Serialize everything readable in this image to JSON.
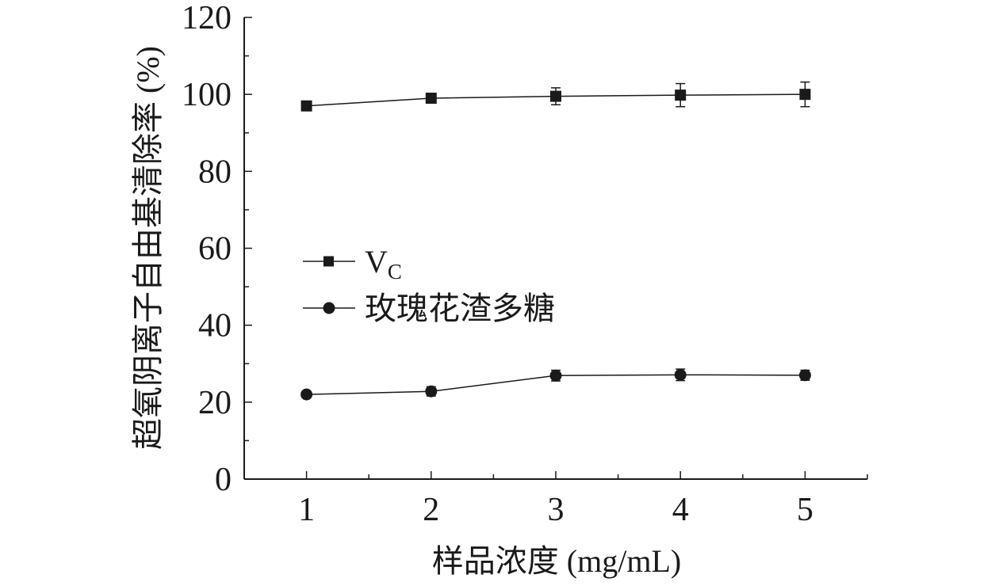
{
  "chart_data": {
    "type": "line",
    "xlabel": "样品浓度 (mg/mL)",
    "ylabel": "超氧阴离子自由基清除率 (%)",
    "x": [
      1,
      2,
      3,
      4,
      5
    ],
    "xlim": [
      0.5,
      5.5
    ],
    "ylim": [
      0,
      120
    ],
    "xticks": [
      "1",
      "2",
      "3",
      "4",
      "5"
    ],
    "yticks": [
      "0",
      "20",
      "40",
      "60",
      "80",
      "100",
      "120"
    ],
    "grid": false,
    "legend_position": "center-left",
    "series": [
      {
        "name": "V",
        "name_subscript": "C",
        "marker": "square",
        "values": [
          97.0,
          99.0,
          99.5,
          99.8,
          100.0
        ],
        "errors": [
          0.6,
          0.5,
          2.2,
          3.0,
          3.2
        ]
      },
      {
        "name": "玫瑰花渣多糖",
        "marker": "circle",
        "values": [
          22.0,
          22.8,
          26.9,
          27.1,
          27.0
        ],
        "errors": [
          0.8,
          1.2,
          1.4,
          1.5,
          1.3
        ]
      }
    ],
    "colors": {
      "line": "#1a1a1a",
      "marker": "#1a1a1a",
      "axis": "#1a1a1a"
    }
  }
}
